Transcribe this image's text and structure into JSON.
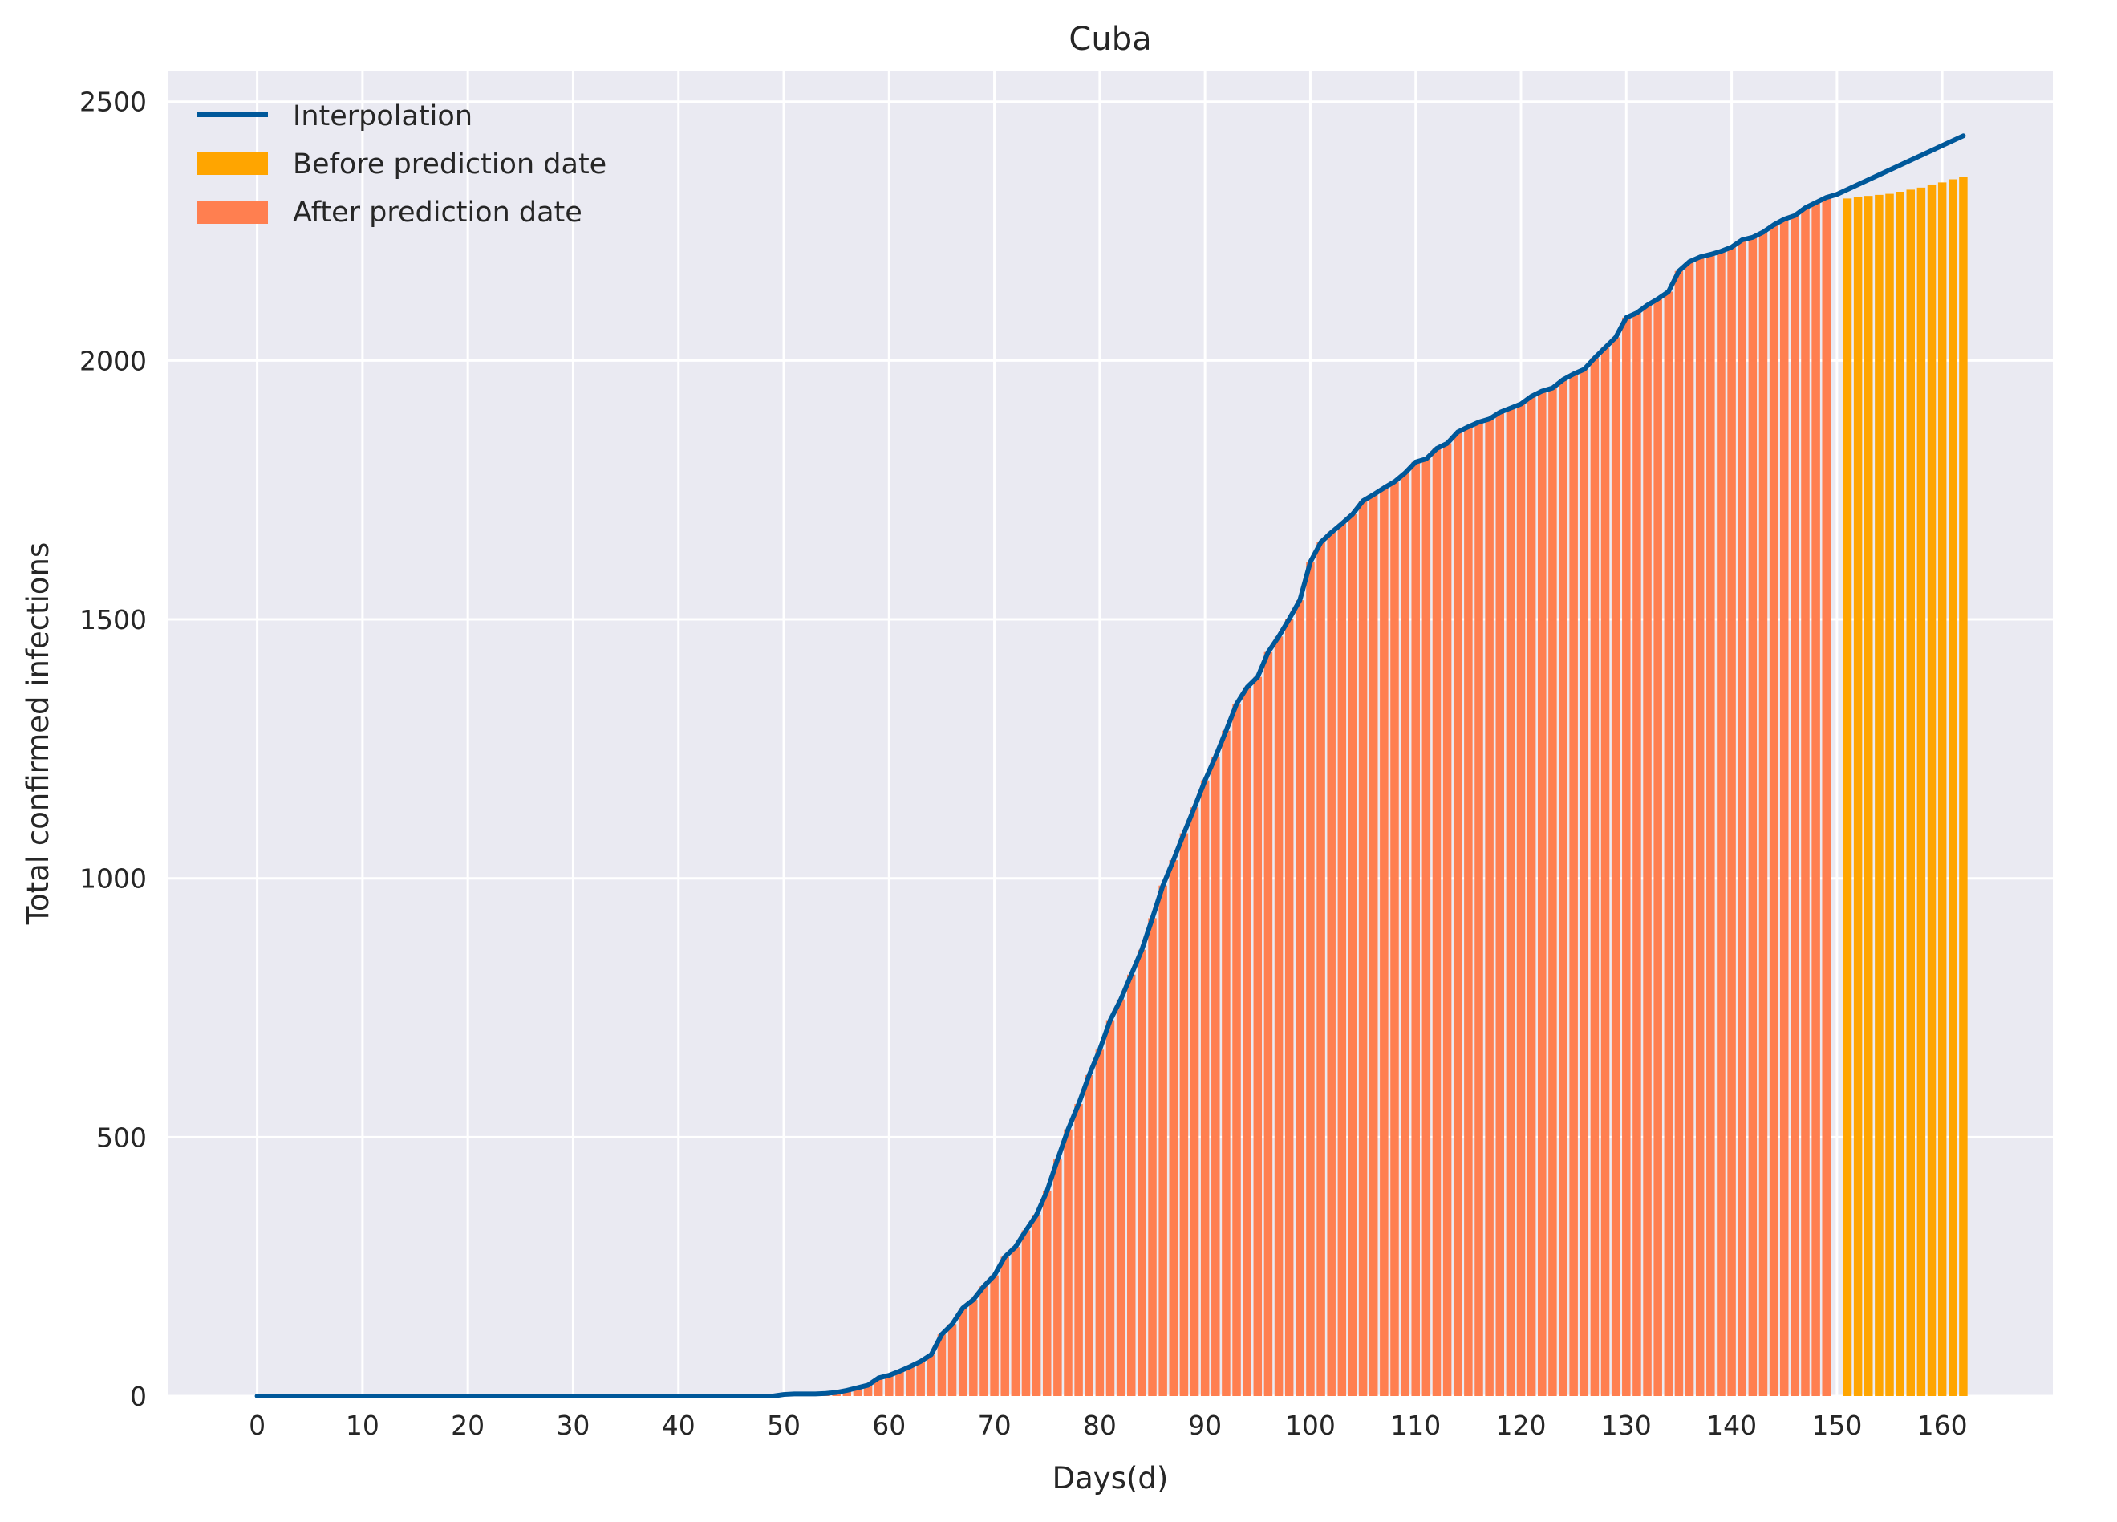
{
  "chart_data": {
    "type": "bar",
    "title": "Cuba",
    "xlabel": "Days(d)",
    "ylabel": "Total confirmed infections",
    "xlim": [
      -8.5,
      170.5
    ],
    "ylim": [
      0,
      2560
    ],
    "grid": true,
    "legend_position": "top-left",
    "x_ticks": [
      0,
      10,
      20,
      30,
      40,
      50,
      60,
      70,
      80,
      90,
      100,
      110,
      120,
      130,
      140,
      150,
      160
    ],
    "y_ticks": [
      0,
      500,
      1000,
      1500,
      2000,
      2500
    ],
    "prediction_start_day": 150,
    "colors": {
      "background": "#eaeaf2",
      "grid": "#ffffff",
      "before_prediction": "#ffa500",
      "after_prediction": "#ff7f50",
      "interpolation": "#00589a"
    },
    "series": [
      {
        "name": "Interpolation",
        "type": "line",
        "x": [
          0,
          49,
          50,
          51,
          52,
          53,
          54,
          55,
          56,
          57,
          58,
          59,
          60,
          61,
          62,
          63,
          64,
          65,
          66,
          67,
          68,
          69,
          70,
          71,
          72,
          73,
          74,
          75,
          76,
          77,
          78,
          79,
          80,
          81,
          82,
          83,
          84,
          85,
          86,
          87,
          88,
          89,
          90,
          91,
          92,
          93,
          94,
          95,
          96,
          97,
          98,
          99,
          100,
          101,
          102,
          103,
          104,
          105,
          106,
          107,
          108,
          109,
          110,
          111,
          112,
          113,
          114,
          115,
          116,
          117,
          118,
          119,
          120,
          121,
          122,
          123,
          124,
          125,
          126,
          127,
          128,
          129,
          130,
          131,
          132,
          133,
          134,
          135,
          136,
          137,
          138,
          139,
          140,
          141,
          142,
          143,
          144,
          145,
          146,
          147,
          148,
          149,
          150,
          162
        ],
        "values": [
          0,
          0,
          3,
          4,
          4,
          4,
          5,
          7,
          11,
          16,
          21,
          35,
          40,
          48,
          57,
          67,
          80,
          119,
          139,
          170,
          186,
          212,
          233,
          269,
          288,
          320,
          350,
          396,
          457,
          515,
          564,
          620,
          669,
          726,
          766,
          814,
          862,
          923,
          986,
          1035,
          1087,
          1137,
          1189,
          1235,
          1285,
          1337,
          1369,
          1389,
          1437,
          1467,
          1501,
          1537,
          1611,
          1649,
          1668,
          1685,
          1703,
          1729,
          1741,
          1754,
          1766,
          1783,
          1804,
          1810,
          1830,
          1840,
          1862,
          1872,
          1881,
          1887,
          1900,
          1908,
          1916,
          1931,
          1941,
          1947,
          1963,
          1974,
          1983,
          2005,
          2025,
          2045,
          2083,
          2092,
          2107,
          2119,
          2133,
          2173,
          2191,
          2200,
          2205,
          2211,
          2219,
          2233,
          2238,
          2248,
          2262,
          2273,
          2280,
          2295,
          2305,
          2315,
          2321,
          2434
        ]
      },
      {
        "name": "Before prediction date",
        "type": "bar",
        "x": [
          151,
          152,
          153,
          154,
          155,
          156,
          157,
          158,
          159,
          160,
          161,
          162
        ],
        "values": [
          2313,
          2316,
          2318,
          2320,
          2322,
          2326,
          2330,
          2334,
          2340,
          2344,
          2350,
          2354
        ]
      },
      {
        "name": "After prediction date",
        "type": "bar",
        "x_start": 0,
        "values": [
          0,
          0,
          0,
          0,
          0,
          0,
          0,
          0,
          0,
          0,
          0,
          0,
          0,
          0,
          0,
          0,
          0,
          0,
          0,
          0,
          0,
          0,
          0,
          0,
          0,
          0,
          0,
          0,
          0,
          0,
          0,
          0,
          0,
          0,
          0,
          0,
          0,
          0,
          0,
          0,
          0,
          0,
          0,
          0,
          0,
          0,
          0,
          0,
          0,
          0,
          3,
          4,
          4,
          4,
          5,
          7,
          11,
          16,
          21,
          35,
          40,
          48,
          57,
          67,
          80,
          119,
          139,
          170,
          186,
          212,
          233,
          269,
          288,
          320,
          350,
          396,
          457,
          515,
          564,
          620,
          669,
          726,
          766,
          814,
          862,
          923,
          986,
          1035,
          1087,
          1137,
          1189,
          1235,
          1285,
          1337,
          1369,
          1389,
          1437,
          1467,
          1501,
          1537,
          1611,
          1649,
          1668,
          1685,
          1703,
          1729,
          1741,
          1754,
          1766,
          1783,
          1804,
          1810,
          1830,
          1840,
          1862,
          1872,
          1881,
          1887,
          1900,
          1908,
          1916,
          1931,
          1941,
          1947,
          1963,
          1974,
          1983,
          2005,
          2025,
          2045,
          2083,
          2092,
          2107,
          2119,
          2133,
          2173,
          2191,
          2200,
          2205,
          2211,
          2219,
          2233,
          2238,
          2248,
          2262,
          2273,
          2280,
          2295,
          2305,
          2315
        ]
      }
    ]
  }
}
